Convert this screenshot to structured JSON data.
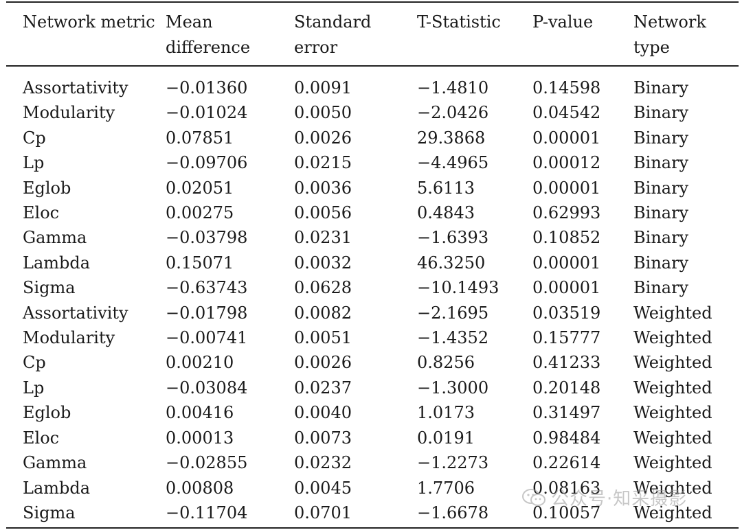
{
  "table": {
    "headers": [
      "Network metric",
      "Mean difference",
      "Standard error",
      "T-Statistic",
      "P-value",
      "Network type"
    ],
    "rows": [
      [
        "Assortativity",
        "−0.01360",
        "0.0091",
        "−1.4810",
        "0.14598",
        "Binary"
      ],
      [
        "Modularity",
        "−0.01024",
        "0.0050",
        "−2.0426",
        "0.04542",
        "Binary"
      ],
      [
        "Cp",
        "0.07851",
        "0.0026",
        "29.3868",
        "0.00001",
        "Binary"
      ],
      [
        "Lp",
        "−0.09706",
        "0.0215",
        "−4.4965",
        "0.00012",
        "Binary"
      ],
      [
        "Eglob",
        "0.02051",
        "0.0036",
        "5.6113",
        "0.00001",
        "Binary"
      ],
      [
        "Eloc",
        "0.00275",
        "0.0056",
        "0.4843",
        "0.62993",
        "Binary"
      ],
      [
        "Gamma",
        "−0.03798",
        "0.0231",
        "−1.6393",
        "0.10852",
        "Binary"
      ],
      [
        "Lambda",
        "0.15071",
        "0.0032",
        "46.3250",
        "0.00001",
        "Binary"
      ],
      [
        "Sigma",
        "−0.63743",
        "0.0628",
        "−10.1493",
        "0.00001",
        "Binary"
      ],
      [
        "Assortativity",
        "−0.01798",
        "0.0082",
        "−2.1695",
        "0.03519",
        "Weighted"
      ],
      [
        "Modularity",
        "−0.00741",
        "0.0051",
        "−1.4352",
        "0.15777",
        "Weighted"
      ],
      [
        "Cp",
        "0.00210",
        "0.0026",
        "0.8256",
        "0.41233",
        "Weighted"
      ],
      [
        "Lp",
        "−0.03084",
        "0.0237",
        "−1.3000",
        "0.20148",
        "Weighted"
      ],
      [
        "Eglob",
        "0.00416",
        "0.0040",
        "1.0173",
        "0.31497",
        "Weighted"
      ],
      [
        "Eloc",
        "0.00013",
        "0.0073",
        "0.0191",
        "0.98484",
        "Weighted"
      ],
      [
        "Gamma",
        "−0.02855",
        "0.0232",
        "−1.2273",
        "0.22614",
        "Weighted"
      ],
      [
        "Lambda",
        "0.00808",
        "0.0045",
        "1.7706",
        "0.08163",
        "Weighted"
      ],
      [
        "Sigma",
        "−0.11704",
        "0.0701",
        "−1.6678",
        "0.10057",
        "Weighted"
      ]
    ]
  },
  "watermark": {
    "text": "公众号·知采摄影"
  }
}
